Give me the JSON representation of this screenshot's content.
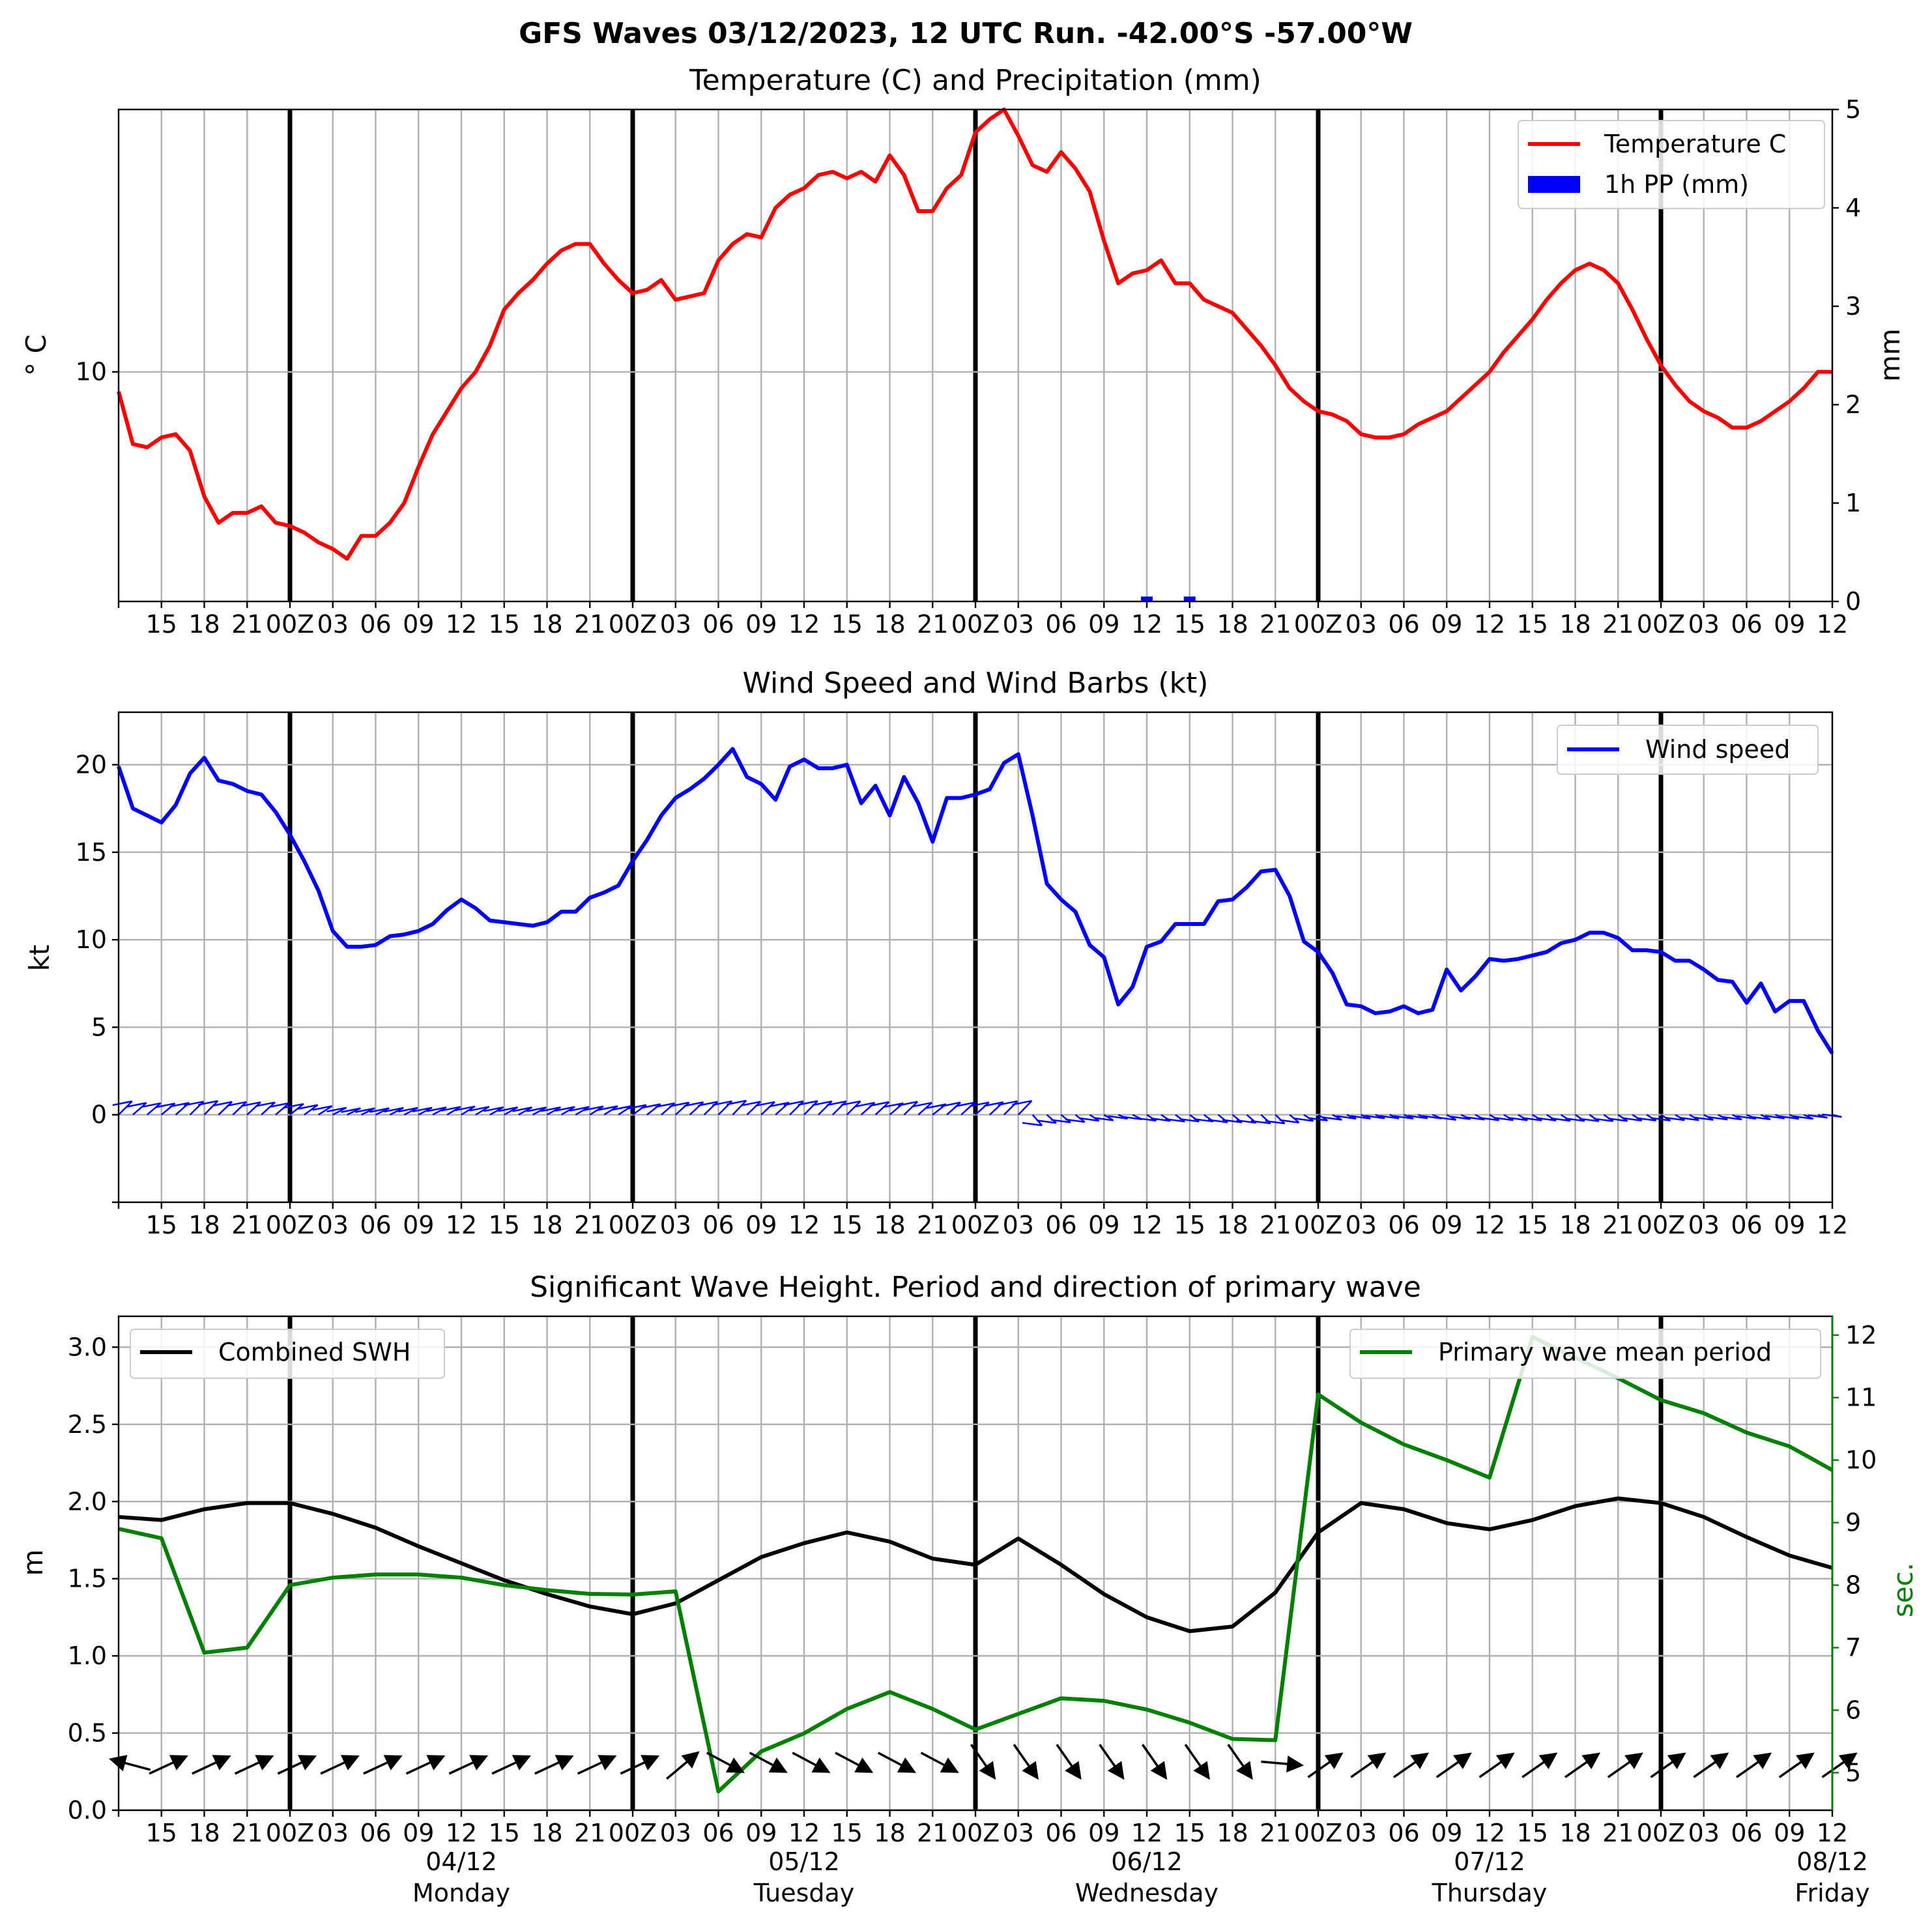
{
  "suptitle": "GFS Waves 03/12/2023, 12 UTC Run. -42.00°S -57.00°W",
  "colors": {
    "temperature": "#ff0000",
    "precip": "#0000ff",
    "wind": "#0000ff",
    "swh": "#000000",
    "period": "#008000",
    "grid": "#b0b0b0"
  },
  "x_axis": {
    "start": "2023-12-03 12Z",
    "end": "2023-12-08 12Z",
    "step_hours": 3,
    "tick_labels": [
      "15",
      "18",
      "21",
      "00Z",
      "03",
      "06",
      "09",
      "12",
      "15",
      "18",
      "21",
      "00Z",
      "03",
      "06",
      "09",
      "12",
      "15",
      "18",
      "21",
      "00Z",
      "03",
      "06",
      "09",
      "12",
      "15",
      "18",
      "21",
      "00Z",
      "03",
      "06",
      "09",
      "12",
      "15",
      "18",
      "21",
      "00Z",
      "03",
      "06",
      "09",
      "12"
    ],
    "day_separators": [
      "2023-12-04 00Z",
      "2023-12-05 00Z",
      "2023-12-06 00Z",
      "2023-12-07 00Z",
      "2023-12-08 00Z"
    ],
    "date_labels": [
      "04/12",
      "05/12",
      "06/12",
      "07/12",
      "08/12"
    ],
    "day_labels": [
      "Monday",
      "Tuesday",
      "Wednesday",
      "Thursday",
      "Friday"
    ]
  },
  "chart_data": [
    {
      "type": "line",
      "title": "Temperature (C) and Precipitation (mm)",
      "ylabel": "° C",
      "ylabel_right": "mm",
      "ylim": [
        3.0,
        18.0
      ],
      "yticks": [
        10
      ],
      "ylim_right": [
        0,
        5
      ],
      "yticks_right": [
        0,
        1,
        2,
        3,
        4,
        5
      ],
      "legend_position": "upper right",
      "grid": true,
      "x_hours": [
        0,
        1,
        2,
        3,
        4,
        5,
        6,
        7,
        8,
        9,
        10,
        11,
        12,
        13,
        14,
        15,
        16,
        17,
        18,
        19,
        20,
        21,
        22,
        23,
        24,
        25,
        26,
        27,
        28,
        29,
        30,
        31,
        32,
        33,
        34,
        35,
        36,
        37,
        38,
        39,
        40,
        41,
        42,
        43,
        44,
        45,
        46,
        47,
        48,
        49,
        50,
        51,
        52,
        53,
        54,
        55,
        56,
        57,
        58,
        59,
        60,
        61,
        62,
        63,
        64,
        65,
        66,
        67,
        68,
        69,
        70,
        71,
        72,
        73,
        74,
        75,
        76,
        77,
        78,
        79,
        80,
        81,
        82,
        83,
        84,
        85,
        86,
        87,
        88,
        89,
        90,
        91,
        92,
        93,
        94,
        95,
        96,
        97,
        98,
        99,
        100,
        101,
        102,
        103,
        104,
        105,
        106,
        107,
        108,
        109,
        110,
        111,
        112,
        113,
        114,
        115,
        116,
        117,
        118,
        119,
        120
      ],
      "series": [
        {
          "name": "Temperature C",
          "axis": "left",
          "values": [
            9.4,
            7.8,
            7.7,
            8.0,
            8.1,
            7.6,
            6.2,
            5.4,
            5.7,
            5.7,
            5.9,
            5.4,
            5.3,
            5.1,
            4.8,
            4.6,
            4.3,
            5.0,
            5.0,
            5.4,
            6.0,
            7.1,
            8.1,
            8.8,
            9.5,
            10.0,
            10.8,
            11.9,
            12.4,
            12.8,
            13.3,
            13.7,
            13.9,
            13.9,
            13.3,
            12.8,
            12.4,
            12.5,
            12.8,
            12.2,
            12.3,
            12.4,
            13.4,
            13.9,
            14.2,
            14.1,
            15.0,
            15.4,
            15.6,
            16.0,
            16.1,
            15.9,
            16.1,
            15.8,
            16.6,
            16.0,
            14.9,
            14.9,
            15.6,
            16.0,
            17.3,
            17.7,
            18.0,
            17.2,
            16.3,
            16.1,
            16.7,
            16.2,
            15.5,
            14.0,
            12.7,
            13.0,
            13.1,
            13.4,
            12.7,
            12.7,
            12.2,
            12.0,
            11.8,
            11.3,
            10.8,
            10.2,
            9.5,
            9.1,
            8.8,
            8.7,
            8.5,
            8.1,
            8.0,
            8.0,
            8.1,
            8.4,
            8.6,
            8.8,
            9.2,
            9.6,
            10.0,
            10.6,
            11.1,
            11.6,
            12.2,
            12.7,
            13.1,
            13.3,
            13.1,
            12.7,
            11.9,
            11.0,
            10.2,
            9.6,
            9.1,
            8.8,
            8.6,
            8.3,
            8.3,
            8.5,
            8.8,
            9.1,
            9.5,
            10.0,
            10.0
          ]
        },
        {
          "name": "1h PP (mm)",
          "type": "bar",
          "axis": "right",
          "x_hours": [
            72,
            75
          ],
          "values": [
            0.05,
            0.05
          ]
        }
      ]
    },
    {
      "type": "line",
      "title": "Wind Speed and Wind Barbs (kt)",
      "ylabel": "kt",
      "ylim": [
        -5,
        23
      ],
      "yticks": [
        0,
        5,
        10,
        15,
        20
      ],
      "legend_position": "upper right",
      "grid": true,
      "x_hours": [
        0,
        1,
        2,
        3,
        4,
        5,
        6,
        7,
        8,
        9,
        10,
        11,
        12,
        13,
        14,
        15,
        16,
        17,
        18,
        19,
        20,
        21,
        22,
        23,
        24,
        25,
        26,
        27,
        28,
        29,
        30,
        31,
        32,
        33,
        34,
        35,
        36,
        37,
        38,
        39,
        40,
        41,
        42,
        43,
        44,
        45,
        46,
        47,
        48,
        49,
        50,
        51,
        52,
        53,
        54,
        55,
        56,
        57,
        58,
        59,
        60,
        61,
        62,
        63,
        64,
        65,
        66,
        67,
        68,
        69,
        70,
        71,
        72,
        73,
        74,
        75,
        76,
        77,
        78,
        79,
        80,
        81,
        82,
        83,
        84,
        85,
        86,
        87,
        88,
        89,
        90,
        91,
        92,
        93,
        94,
        95,
        96,
        97,
        98,
        99,
        100,
        101,
        102,
        103,
        104,
        105,
        106,
        107,
        108,
        109,
        110,
        111,
        112,
        113,
        114,
        115,
        116,
        117,
        118,
        119,
        120
      ],
      "series": [
        {
          "name": "Wind speed",
          "values": [
            19.9,
            17.5,
            17.1,
            16.7,
            17.7,
            19.5,
            20.4,
            19.1,
            18.9,
            18.5,
            18.3,
            17.3,
            16.0,
            14.5,
            12.8,
            10.5,
            9.6,
            9.6,
            9.7,
            10.2,
            10.3,
            10.5,
            10.9,
            11.7,
            12.3,
            11.8,
            11.1,
            11.0,
            10.9,
            10.8,
            11.0,
            11.6,
            11.6,
            12.4,
            12.7,
            13.1,
            14.5,
            15.7,
            17.1,
            18.1,
            18.6,
            19.2,
            20.0,
            20.9,
            19.3,
            18.9,
            18.0,
            19.9,
            20.3,
            19.8,
            19.8,
            20.0,
            17.8,
            18.8,
            17.1,
            19.3,
            17.8,
            15.6,
            18.1,
            18.1,
            18.3,
            18.6,
            20.1,
            20.6,
            17.1,
            13.2,
            12.3,
            11.6,
            9.7,
            9.0,
            6.3,
            7.3,
            9.6,
            9.9,
            10.9,
            10.9,
            10.9,
            12.2,
            12.3,
            13.0,
            13.9,
            14.0,
            12.5,
            9.9,
            9.3,
            8.1,
            6.3,
            6.2,
            5.8,
            5.9,
            6.2,
            5.8,
            6.0,
            8.3,
            7.1,
            7.9,
            8.9,
            8.8,
            8.9,
            9.1,
            9.3,
            9.8,
            10.0,
            10.4,
            10.4,
            10.1,
            9.4,
            9.4,
            9.3,
            8.8,
            8.8,
            8.3,
            7.7,
            7.6,
            6.4,
            7.5,
            5.9,
            6.5,
            6.5,
            4.8,
            3.5
          ]
        }
      ],
      "wind_barbs": {
        "baseline_kt": 0,
        "description": "one barb per hour drawn along y=0; barbs point north-eastward for the first three days then south-eastward"
      }
    },
    {
      "type": "line",
      "title": "Significant Wave Height. Period and direction of primary wave",
      "ylabel": "m",
      "ylabel_right": "sec.",
      "ylim": [
        0,
        3.2
      ],
      "yticks": [
        0.0,
        0.5,
        1.0,
        1.5,
        2.0,
        2.5,
        3.0
      ],
      "ylim_right": [
        4.4,
        12.3
      ],
      "yticks_right": [
        5,
        6,
        7,
        8,
        9,
        10,
        11,
        12
      ],
      "grid": true,
      "x_hours": [
        0,
        3,
        6,
        9,
        12,
        15,
        18,
        21,
        24,
        27,
        30,
        33,
        36,
        39,
        42,
        45,
        48,
        51,
        54,
        57,
        60,
        63,
        66,
        69,
        72,
        75,
        78,
        81,
        84,
        87,
        90,
        93,
        96,
        99,
        102,
        105,
        108,
        111,
        114,
        117,
        120
      ],
      "series": [
        {
          "name": "Combined SWH",
          "axis": "left",
          "legend_position": "upper left",
          "values": [
            1.9,
            1.88,
            1.95,
            1.99,
            1.99,
            1.92,
            1.83,
            1.71,
            1.6,
            1.49,
            1.4,
            1.32,
            1.27,
            1.34,
            1.49,
            1.64,
            1.73,
            1.8,
            1.74,
            1.63,
            1.59,
            1.76,
            1.59,
            1.4,
            1.25,
            1.16,
            1.19,
            1.41,
            1.8,
            1.99,
            1.95,
            1.86,
            1.82,
            1.88,
            1.97,
            2.02,
            1.99,
            1.9,
            1.77,
            1.65,
            1.57
          ]
        },
        {
          "name": "Primary wave mean period",
          "axis": "right",
          "legend_position": "upper right",
          "values": [
            8.9,
            8.75,
            6.92,
            7.0,
            8.0,
            8.12,
            8.17,
            8.17,
            8.12,
            8.0,
            7.92,
            7.86,
            7.85,
            7.9,
            4.7,
            5.34,
            5.63,
            6.02,
            6.29,
            6.02,
            5.69,
            5.94,
            6.19,
            6.15,
            6.01,
            5.8,
            5.54,
            5.52,
            11.05,
            10.6,
            10.25,
            10.0,
            9.72,
            11.97,
            11.64,
            11.31,
            10.96,
            10.75,
            10.44,
            10.22,
            9.84
          ]
        }
      ],
      "wave_direction_arrows": {
        "baseline_m": 0.28,
        "description": "primary wave direction arrows every 3 hours; north-east pointing at first, south-east pointing on 05/12–06/12, north-east again from 07/12"
      }
    }
  ]
}
